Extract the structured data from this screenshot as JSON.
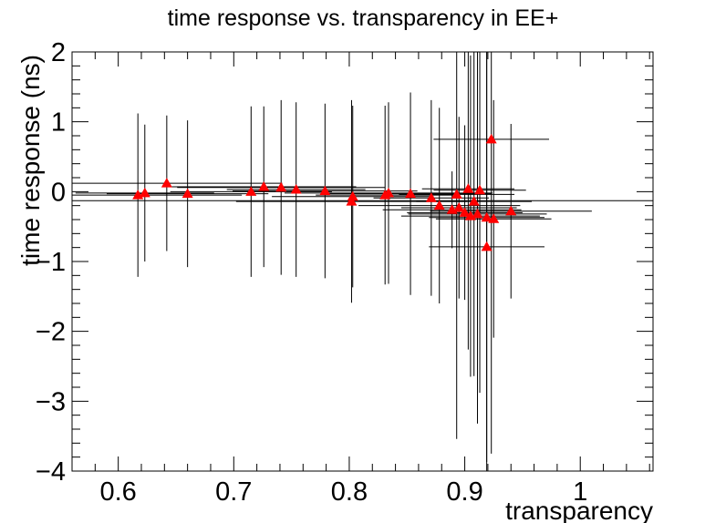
{
  "chart_data": {
    "type": "scatter",
    "title": "time response vs. transparency in EE+",
    "xlabel": "transparency",
    "ylabel": "time response (ns)",
    "xlim": [
      0.56,
      1.063
    ],
    "ylim": [
      -4,
      2
    ],
    "x_ticks": [
      0.6,
      0.7,
      0.8,
      0.9,
      1.0
    ],
    "x_tick_labels": [
      "0.6",
      "0.7",
      "0.8",
      "0.9",
      "1"
    ],
    "y_ticks": [
      -4,
      -3,
      -2,
      -1,
      0,
      1,
      2
    ],
    "y_tick_labels": [
      "−4",
      "−3",
      "−2",
      "−1",
      "0",
      "1",
      "2"
    ],
    "marker": "triangle",
    "marker_color": "#ff0000",
    "grid": false,
    "points": [
      {
        "x": 0.617,
        "y": -0.05,
        "xerr": 0.09,
        "yerr": 1.17
      },
      {
        "x": 0.623,
        "y": -0.02,
        "xerr": 0.06,
        "yerr": 0.98
      },
      {
        "x": 0.642,
        "y": 0.12,
        "xerr": 0.1,
        "yerr": 0.97
      },
      {
        "x": 0.66,
        "y": -0.03,
        "xerr": 0.07,
        "yerr": 1.05
      },
      {
        "x": 0.715,
        "y": 0.0,
        "xerr": 0.07,
        "yerr": 1.22
      },
      {
        "x": 0.726,
        "y": 0.07,
        "xerr": 0.08,
        "yerr": 1.15
      },
      {
        "x": 0.741,
        "y": 0.06,
        "xerr": 0.09,
        "yerr": 1.25
      },
      {
        "x": 0.754,
        "y": 0.03,
        "xerr": 0.06,
        "yerr": 1.25
      },
      {
        "x": 0.779,
        "y": 0.01,
        "xerr": 0.08,
        "yerr": 1.25
      },
      {
        "x": 0.802,
        "y": -0.14,
        "xerr": 0.1,
        "yerr": 1.45
      },
      {
        "x": 0.803,
        "y": -0.07,
        "xerr": 0.07,
        "yerr": 1.3
      },
      {
        "x": 0.831,
        "y": -0.05,
        "xerr": 0.06,
        "yerr": 1.28
      },
      {
        "x": 0.834,
        "y": -0.02,
        "xerr": 0.09,
        "yerr": 1.3
      },
      {
        "x": 0.853,
        "y": -0.03,
        "xerr": 0.07,
        "yerr": 1.45
      },
      {
        "x": 0.871,
        "y": -0.09,
        "xerr": 0.05,
        "yerr": 1.4
      },
      {
        "x": 0.878,
        "y": -0.2,
        "xerr": 0.07,
        "yerr": 1.4
      },
      {
        "x": 0.889,
        "y": -0.26,
        "xerr": 0.06,
        "yerr": 0.55
      },
      {
        "x": 0.893,
        "y": -0.04,
        "xerr": 0.05,
        "yerr": 3.5
      },
      {
        "x": 0.895,
        "y": -0.23,
        "xerr": 0.05,
        "yerr": 1.3
      },
      {
        "x": 0.9,
        "y": -0.3,
        "xerr": 0.05,
        "yerr": 1.25
      },
      {
        "x": 0.903,
        "y": 0.04,
        "xerr": 0.04,
        "yerr": 2.3
      },
      {
        "x": 0.905,
        "y": -0.35,
        "xerr": 0.06,
        "yerr": 2.3
      },
      {
        "x": 0.908,
        "y": -0.14,
        "xerr": 0.05,
        "yerr": 2.5
      },
      {
        "x": 0.911,
        "y": -0.32,
        "xerr": 0.06,
        "yerr": 3.0
      },
      {
        "x": 0.913,
        "y": 0.02,
        "xerr": 0.04,
        "yerr": 2.9
      },
      {
        "x": 0.919,
        "y": -0.79,
        "xerr": 0.05,
        "yerr": 3.3
      },
      {
        "x": 0.919,
        "y": -0.37,
        "xerr": 0.05,
        "yerr": 3.5
      },
      {
        "x": 0.923,
        "y": 0.75,
        "xerr": 0.05,
        "yerr": 4.5
      },
      {
        "x": 0.925,
        "y": -0.39,
        "xerr": 0.05,
        "yerr": 1.7
      },
      {
        "x": 0.94,
        "y": -0.28,
        "xerr": 0.07,
        "yerr": 1.25
      }
    ],
    "horizontal_lines": [
      {
        "x0": 0.56,
        "x1": 1.063,
        "y": -0.13
      }
    ]
  }
}
